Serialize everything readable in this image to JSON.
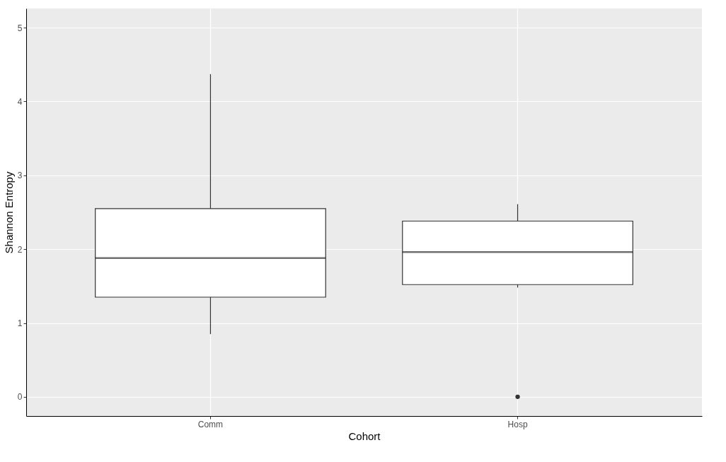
{
  "chart_data": {
    "type": "box",
    "xlabel": "Cohort",
    "ylabel": "Shannon Entropy",
    "categories": [
      "Comm",
      "Hosp"
    ],
    "boxes": [
      {
        "low": 0.85,
        "q1": 1.35,
        "median": 1.88,
        "q3": 2.55,
        "high": 4.37
      },
      {
        "low": 1.48,
        "q1": 1.52,
        "median": 1.96,
        "q3": 2.38,
        "high": 2.61,
        "outliers": [
          0
        ]
      }
    ],
    "ylim": [
      -0.26,
      5.26
    ],
    "yticks": [
      0,
      1,
      2,
      3,
      4,
      5
    ],
    "grid": true
  }
}
